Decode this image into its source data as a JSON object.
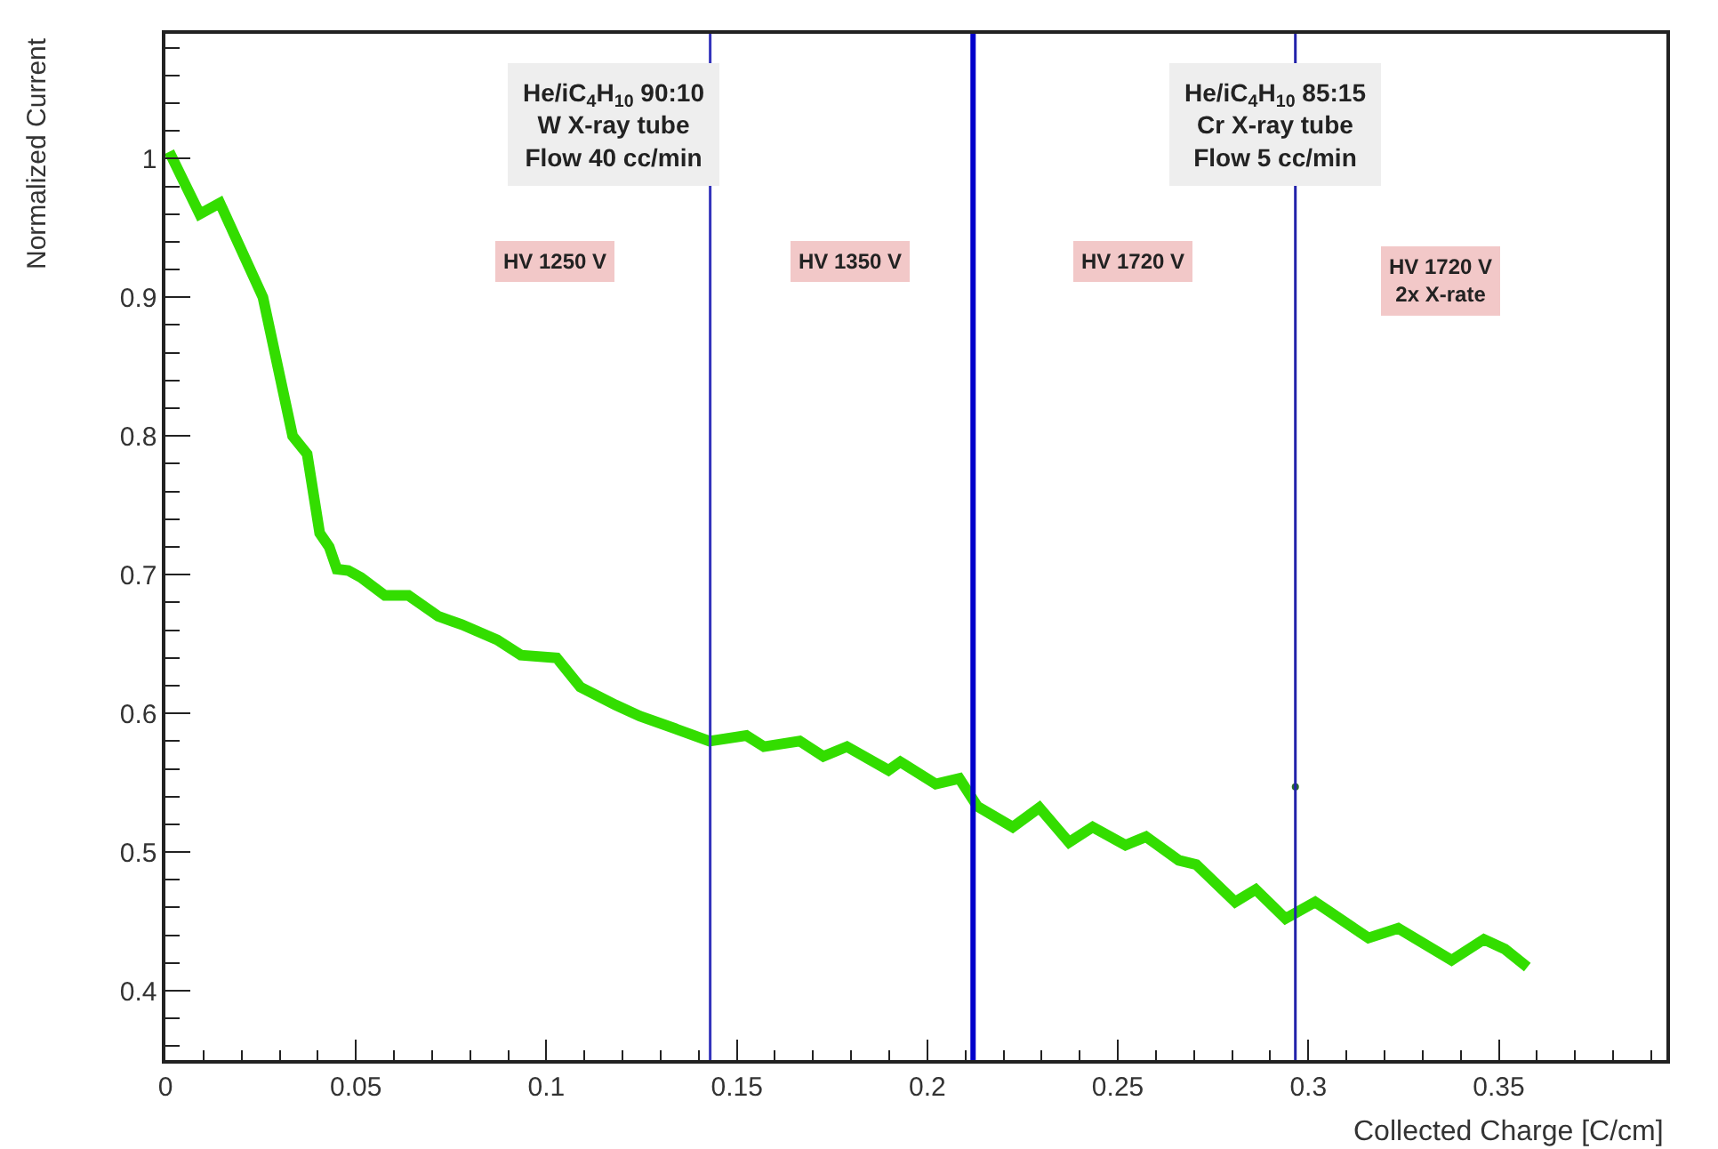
{
  "chart_data": {
    "type": "line",
    "xlabel": "Collected Charge [C/cm]",
    "ylabel": "Normalized Current",
    "xlim": [
      0,
      0.394
    ],
    "ylim": [
      0.35,
      1.09
    ],
    "xticks": [
      0,
      0.05,
      0.1,
      0.15,
      0.2,
      0.25,
      0.3,
      0.35
    ],
    "yticks": [
      0.4,
      0.5,
      0.6,
      0.7,
      0.8,
      0.9,
      1
    ],
    "line_style": "solid",
    "series": [
      {
        "color": "#33dd00",
        "x": [
          0.001,
          0.009,
          0.0143,
          0.0256,
          0.0334,
          0.0372,
          0.0405,
          0.043,
          0.045,
          0.048,
          0.0513,
          0.0576,
          0.0638,
          0.0716,
          0.0778,
          0.0871,
          0.0933,
          0.1027,
          0.1089,
          0.1182,
          0.1245,
          0.1338,
          0.1428,
          0.1525,
          0.1571,
          0.1665,
          0.1727,
          0.1789,
          0.1898,
          0.1929,
          0.2022,
          0.2084,
          0.2131,
          0.2224,
          0.2294,
          0.2372,
          0.2434,
          0.252,
          0.2574,
          0.266,
          0.2706,
          0.2808,
          0.2862,
          0.294,
          0.3018,
          0.3158,
          0.3236,
          0.3376,
          0.3461,
          0.3516,
          0.3575
        ],
        "values": [
          1.005,
          0.96,
          0.968,
          0.9,
          0.8,
          0.787,
          0.73,
          0.72,
          0.704,
          0.703,
          0.698,
          0.685,
          0.685,
          0.67,
          0.664,
          0.653,
          0.642,
          0.64,
          0.619,
          0.606,
          0.598,
          0.589,
          0.58,
          0.584,
          0.576,
          0.58,
          0.569,
          0.576,
          0.559,
          0.565,
          0.549,
          0.553,
          0.533,
          0.518,
          0.532,
          0.507,
          0.518,
          0.505,
          0.511,
          0.494,
          0.491,
          0.464,
          0.473,
          0.452,
          0.464,
          0.438,
          0.445,
          0.422,
          0.437,
          0.43,
          0.417
        ]
      },
      {
        "type": "scatter",
        "color": "#2a6a2a",
        "x": [
          0.2966
        ],
        "values": [
          0.547
        ]
      }
    ],
    "ref_lines": [
      {
        "axis": "x",
        "value": 0.143,
        "color": "#3333bb"
      },
      {
        "axis": "x",
        "value": 0.212,
        "color": "#0000cc"
      },
      {
        "axis": "x",
        "value": 0.2966,
        "color": "#2222aa"
      }
    ],
    "annotations": [
      "He/iC$_{4}$H$_{10}$ 90:10\nW X-ray tube\nFlow 40 cc/min",
      "He/iC$_{4}$H$_{10}$ 85:15\nCr X-ray tube\nFlow 5 cc/min",
      "HV 1250 V",
      "HV 1350 V",
      "HV 1720 V",
      "HV 1720 V\n2x X-rate"
    ]
  }
}
